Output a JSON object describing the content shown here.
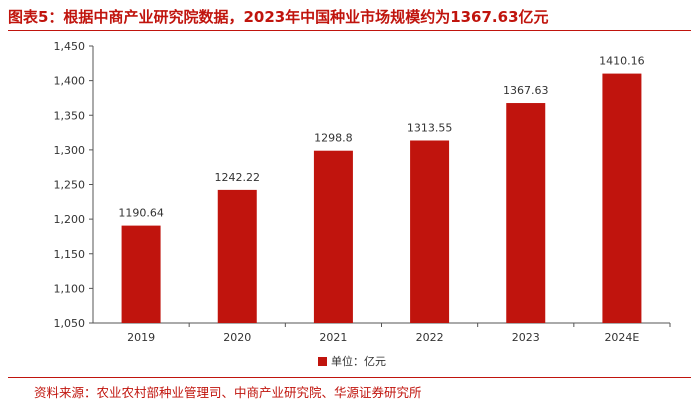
{
  "title": "图表5：根据中商产业研究院数据，2023年中国种业市场规模约为1367.63亿元",
  "source": "资料来源：农业农村部种业管理司、中商产业研究院、华源证券研究所",
  "colors": {
    "bar": "#c0140d",
    "accent": "#c0140d"
  },
  "chart_data": {
    "type": "bar",
    "categories": [
      "2019",
      "2020",
      "2021",
      "2022",
      "2023",
      "2024E"
    ],
    "values": [
      1190.64,
      1242.22,
      1298.8,
      1313.55,
      1367.63,
      1410.16
    ],
    "data_labels": [
      "1190.64",
      "1242.22",
      "1298.8",
      "1313.55",
      "1367.63",
      "1410.16"
    ],
    "ylim": [
      1050,
      1450
    ],
    "yticks": [
      1050,
      1100,
      1150,
      1200,
      1250,
      1300,
      1350,
      1400,
      1450
    ],
    "ytick_labels": [
      "1,050",
      "1,100",
      "1,150",
      "1,200",
      "1,250",
      "1,300",
      "1,350",
      "1,400",
      "1,450"
    ],
    "legend": "单位：亿元",
    "legend_position": "bottom",
    "grid": false
  }
}
